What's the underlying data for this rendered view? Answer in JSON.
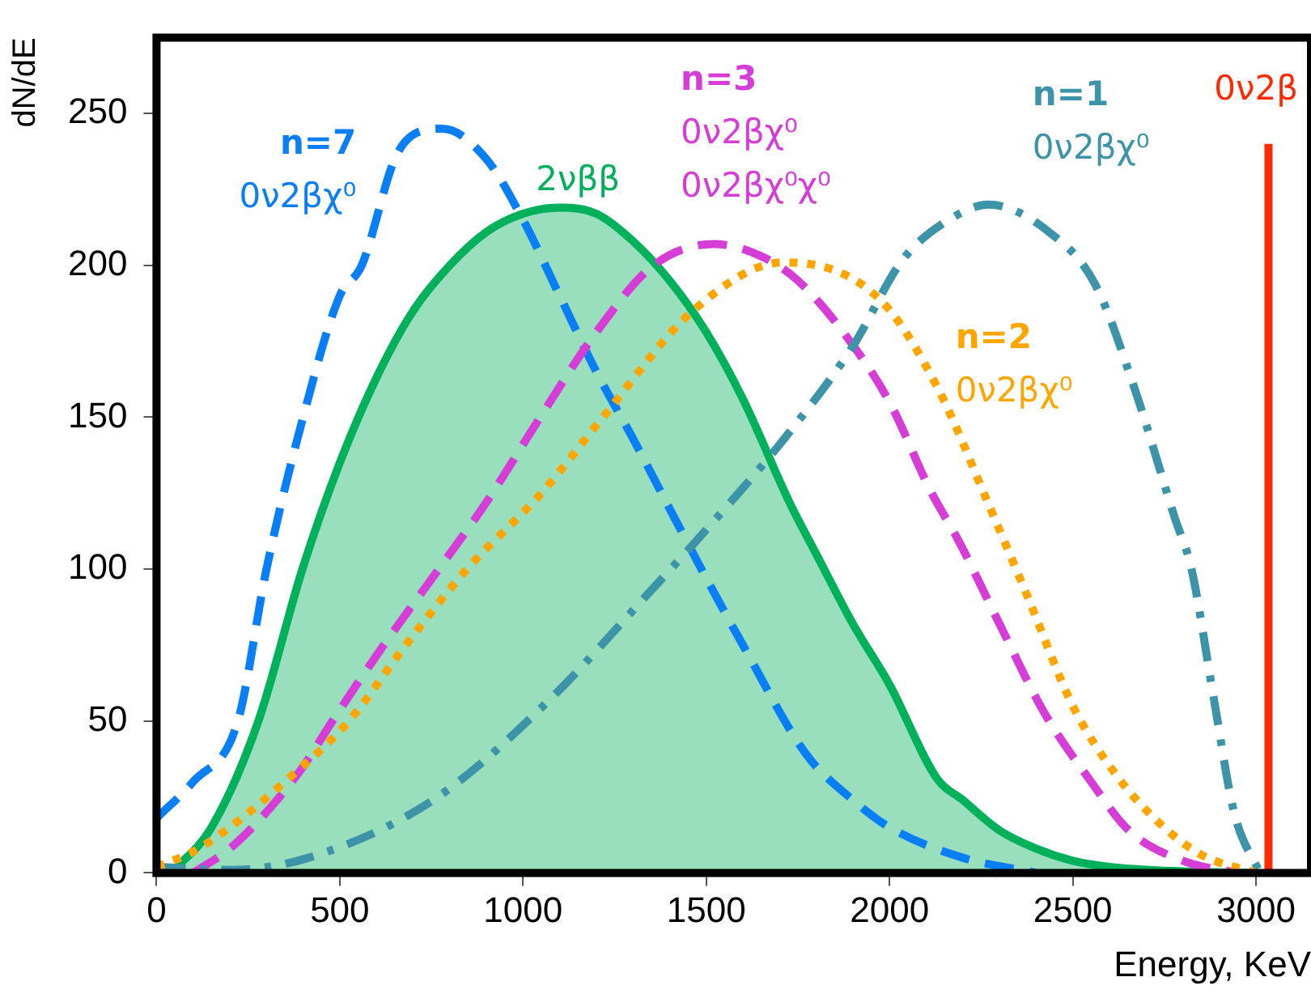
{
  "chart_data": {
    "type": "line",
    "xlabel": "Energy, KeV",
    "ylabel": "dN/dE",
    "xlim": [
      0,
      3150
    ],
    "ylim": [
      0,
      275
    ],
    "xticks": [
      0,
      500,
      1000,
      1500,
      2000,
      2500,
      3000
    ],
    "yticks": [
      0,
      50,
      100,
      150,
      200,
      250
    ],
    "grid": false,
    "legend": false,
    "series": [
      {
        "name": "2νββ",
        "type": "area",
        "color": "#00b05a",
        "line_style": "solid",
        "x": [
          40,
          150,
          278,
          398,
          500,
          600,
          700,
          800,
          900,
          1000,
          1100,
          1200,
          1300,
          1400,
          1500,
          1600,
          1727,
          1800,
          1900,
          2000,
          2130,
          2200,
          2300,
          2400,
          2500,
          2600,
          2800,
          3000
        ],
        "values": [
          0,
          15,
          50,
          100,
          135,
          163,
          185,
          200,
          211,
          217,
          219,
          217,
          208,
          195,
          178,
          156,
          122,
          105,
          82,
          62,
          31,
          24,
          14,
          8,
          4,
          2,
          0.5,
          0
        ]
      },
      {
        "name": "n=7\n0ν2βχ⁰",
        "type": "line",
        "color": "#0a7ff5",
        "line_style": "dashed",
        "x": [
          0,
          100,
          222,
          300,
          400,
          500,
          560,
          650,
          700,
          780,
          900,
          1000,
          1100,
          1200,
          1300,
          1417,
          1500,
          1600,
          1773,
          1900,
          2000,
          2200,
          2400
        ],
        "values": [
          18,
          30,
          50,
          100,
          150,
          190,
          200,
          235,
          243,
          245,
          235,
          215,
          190,
          165,
          143,
          116,
          97,
          75,
          39,
          24,
          15,
          5,
          0
        ]
      },
      {
        "name": "n=3\n0ν2βχ⁰\n0ν2βχ⁰χ⁰",
        "type": "line",
        "color": "#d63cd6",
        "line_style": "dashed",
        "x": [
          100,
          200,
          300,
          400,
          480,
          620,
          770,
          900,
          1047,
          1200,
          1356,
          1520,
          1650,
          1750,
          1880,
          2000,
          2111,
          2190,
          2300,
          2421,
          2550,
          2653,
          2800,
          2950
        ],
        "values": [
          0,
          8,
          20,
          35,
          50,
          75,
          100,
          122,
          150,
          178,
          200,
          207,
          203,
          195,
          177,
          155,
          126,
          109,
          82,
          53,
          30,
          14,
          4,
          0
        ]
      },
      {
        "name": "n=1\n0ν2βχ⁰",
        "type": "line",
        "color": "#3d94a8",
        "line_style": "dashdot",
        "x": [
          0,
          200,
          415,
          755,
          1064,
          1342,
          1500,
          1713,
          1898,
          2037,
          2176,
          2270,
          2435,
          2560,
          2667,
          2778,
          2824,
          2884,
          2940,
          3010
        ],
        "values": [
          2,
          1,
          5,
          24,
          56,
          92,
          113,
          143,
          173,
          202,
          216,
          220,
          211,
          194,
          160,
          117,
          100,
          58,
          20,
          0
        ]
      },
      {
        "name": "n=2\n0ν2βχ⁰",
        "type": "line",
        "color": "#ffa500",
        "line_style": "dotted",
        "x": [
          0,
          100,
          200,
          350,
          525,
          680,
          847,
          1050,
          1218,
          1463,
          1713,
          1972,
          2130,
          2268,
          2380,
          2500,
          2620,
          2731,
          2850,
          3000
        ],
        "values": [
          2,
          7,
          15,
          30,
          50,
          75,
          100,
          125,
          150,
          185,
          201,
          189,
          160,
          122,
          90,
          55,
          32,
          17,
          6,
          0
        ]
      },
      {
        "name": "0ν2β",
        "type": "line",
        "color": "#ff2a00",
        "line_style": "solid",
        "x": [
          3034,
          3034
        ],
        "values": [
          0,
          240
        ]
      }
    ]
  }
}
